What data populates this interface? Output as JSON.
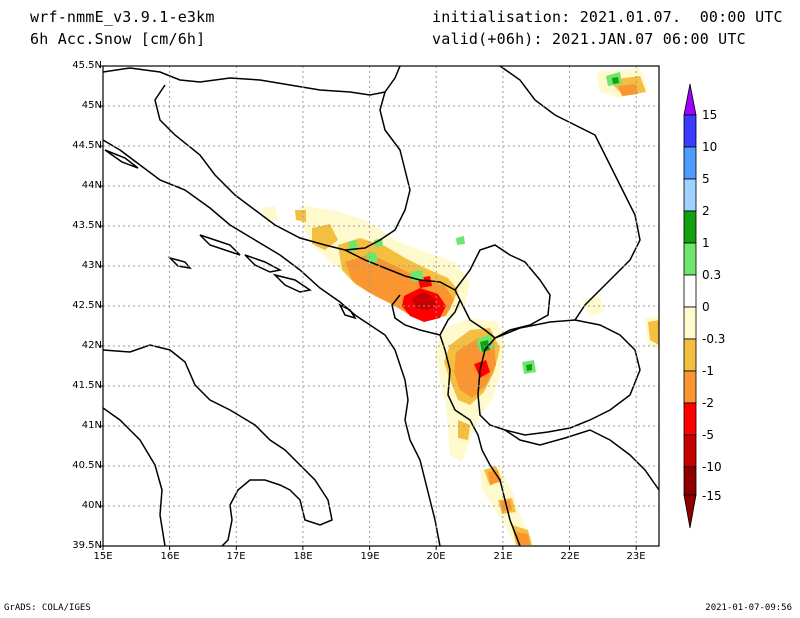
{
  "header": {
    "model": "wrf-nmmE_v3.9.1-e3km",
    "field": "6h Acc.Snow [cm/6h]",
    "init": "initialisation: 2021.01.07.  00:00 UTC",
    "valid": "valid(+06h): 2021.JAN.07 06:00 UTC"
  },
  "map": {
    "lat_labels": [
      "45.5N",
      "45N",
      "44.5N",
      "44N",
      "43.5N",
      "43N",
      "42.5N",
      "42N",
      "41.5N",
      "41N",
      "40.5N",
      "40N",
      "39.5N"
    ],
    "lon_labels": [
      "15E",
      "16E",
      "17E",
      "18E",
      "19E",
      "20E",
      "21E",
      "22E",
      "23E"
    ],
    "grid": true
  },
  "colorbar": {
    "labels": [
      "15",
      "10",
      "5",
      "2",
      "1",
      "0.3",
      "0",
      "-0.3",
      "-1",
      "-2",
      "-5",
      "-10",
      "-15"
    ],
    "colors": [
      "#a000ff",
      "#3c3cff",
      "#4f9bff",
      "#a0d2ff",
      "#10a010",
      "#6ee66e",
      "#ffffff",
      "#fffacd",
      "#f4be40",
      "#fa9632",
      "#ff0000",
      "#c80000",
      "#8c0000"
    ]
  },
  "footer": {
    "left": "GrADS: COLA/IGES",
    "right": "2021-01-07-09:56"
  }
}
